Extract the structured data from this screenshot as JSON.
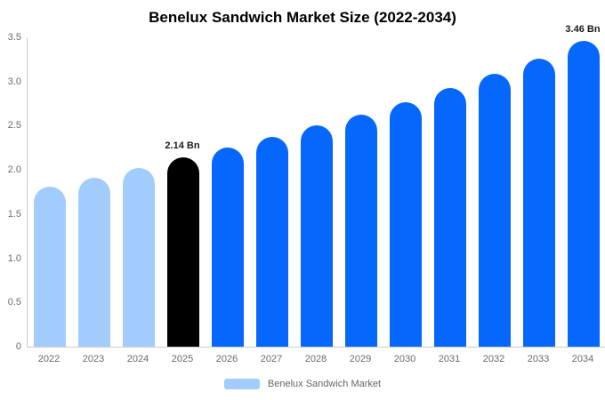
{
  "title": "Benelux Sandwich Market Size (2022-2034)",
  "colors": {
    "past": "#a2ccfb",
    "current": "#000000",
    "forecast": "#0667fc",
    "axis_line": "#cccccc",
    "axis_text": "#6b6b6b",
    "value_label_text": "#1a1a1a",
    "legend_text": "#666666"
  },
  "legend": {
    "label": "Benelux Sandwich Market",
    "swatch_color": "#a2ccfb"
  },
  "chart_data": {
    "type": "bar",
    "title": "Benelux Sandwich Market Size (2022-2034)",
    "unit": "Bn",
    "categories": [
      "2022",
      "2023",
      "2024",
      "2025",
      "2026",
      "2027",
      "2028",
      "2029",
      "2030",
      "2031",
      "2032",
      "2033",
      "2034"
    ],
    "values": [
      1.81,
      1.91,
      2.02,
      2.14,
      2.25,
      2.37,
      2.5,
      2.63,
      2.77,
      2.93,
      3.09,
      3.26,
      3.46
    ],
    "color_key": [
      "past",
      "past",
      "past",
      "current",
      "forecast",
      "forecast",
      "forecast",
      "forecast",
      "forecast",
      "forecast",
      "forecast",
      "forecast",
      "forecast"
    ],
    "bar_labels": [
      "",
      "",
      "",
      "2.14 Bn",
      "",
      "",
      "",
      "",
      "",
      "",
      "",
      "",
      "3.46 Bn"
    ],
    "annotations": [
      {
        "category": "2025",
        "text": "2.14 Bn"
      },
      {
        "category": "2034",
        "text": "3.46 Bn"
      }
    ],
    "yticks": [
      "0",
      "0.5",
      "1.0",
      "1.5",
      "2.0",
      "2.5",
      "3.0",
      "3.5"
    ],
    "ylim": [
      0,
      3.5
    ],
    "xlabel": "",
    "ylabel": "",
    "grid": false,
    "legend_position": "bottom",
    "legend_entries": [
      "Benelux Sandwich Market"
    ]
  }
}
